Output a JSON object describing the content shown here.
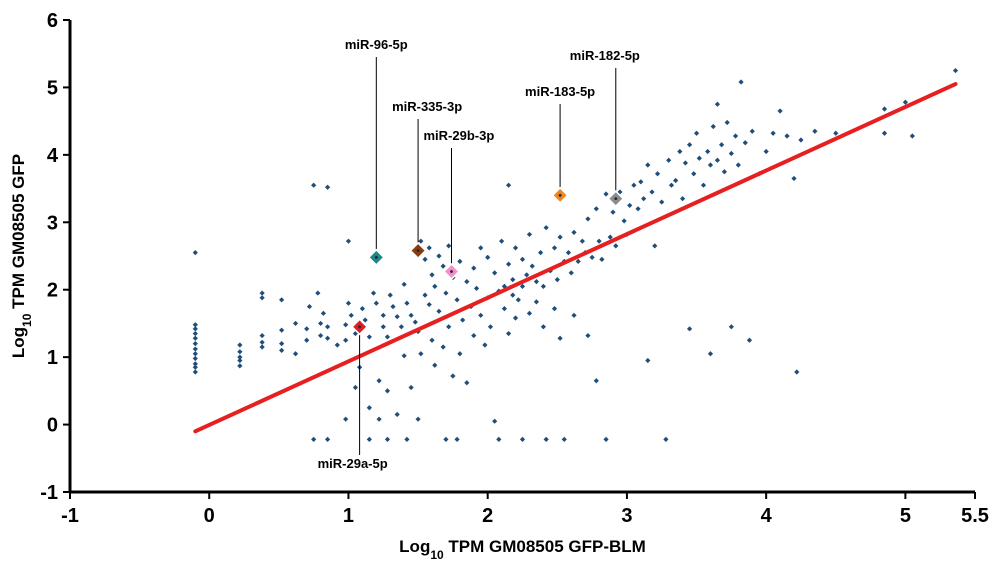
{
  "chart_data": {
    "type": "scatter",
    "title": "",
    "xlabel": {
      "prefix": "Log",
      "sub": "10",
      "rest": " TPM GM08505 GFP-BLM"
    },
    "ylabel": {
      "prefix": "Log",
      "sub": "10",
      "rest": " TPM GM08505 GFP"
    },
    "xlim": [
      -1,
      5.5
    ],
    "ylim": [
      -1,
      6
    ],
    "x_ticks": [
      "-1",
      "0",
      "1",
      "2",
      "3",
      "4",
      "5",
      "5.5"
    ],
    "y_ticks": [
      "-1",
      "0",
      "1",
      "2",
      "3",
      "4",
      "5",
      "6"
    ],
    "grid": false,
    "colors": {
      "points": "#1f4e79",
      "fit_line": "#e62020"
    },
    "fit_line": {
      "x": [
        -0.1,
        5.36
      ],
      "y": [
        -0.1,
        5.05
      ]
    },
    "points": [
      [
        -0.1,
        2.55
      ],
      [
        -0.1,
        1.48
      ],
      [
        -0.1,
        1.42
      ],
      [
        -0.1,
        1.35
      ],
      [
        -0.1,
        1.28
      ],
      [
        -0.1,
        1.2
      ],
      [
        -0.1,
        1.12
      ],
      [
        -0.1,
        1.05
      ],
      [
        -0.1,
        0.98
      ],
      [
        -0.1,
        0.9
      ],
      [
        -0.1,
        0.85
      ],
      [
        -0.1,
        0.78
      ],
      [
        0.22,
        1.18
      ],
      [
        0.22,
        1.08
      ],
      [
        0.22,
        1.0
      ],
      [
        0.22,
        0.95
      ],
      [
        0.22,
        0.87
      ],
      [
        0.38,
        1.95
      ],
      [
        0.38,
        1.88
      ],
      [
        0.38,
        1.32
      ],
      [
        0.38,
        1.22
      ],
      [
        0.38,
        1.15
      ],
      [
        0.52,
        1.85
      ],
      [
        0.52,
        1.4
      ],
      [
        0.52,
        1.2
      ],
      [
        0.52,
        1.1
      ],
      [
        0.62,
        1.5
      ],
      [
        0.62,
        1.05
      ],
      [
        0.7,
        1.42
      ],
      [
        0.7,
        1.25
      ],
      [
        0.72,
        1.75
      ],
      [
        0.75,
        3.55
      ],
      [
        0.75,
        -0.22
      ],
      [
        0.78,
        1.95
      ],
      [
        0.8,
        1.5
      ],
      [
        0.8,
        1.32
      ],
      [
        0.82,
        1.65
      ],
      [
        0.85,
        3.52
      ],
      [
        0.85,
        1.45
      ],
      [
        0.85,
        1.28
      ],
      [
        0.85,
        -0.22
      ],
      [
        0.92,
        1.18
      ],
      [
        0.98,
        1.48
      ],
      [
        0.98,
        1.25
      ],
      [
        0.98,
        0.08
      ],
      [
        1.0,
        2.72
      ],
      [
        1.0,
        1.8
      ],
      [
        1.02,
        1.62
      ],
      [
        1.05,
        1.35
      ],
      [
        1.05,
        0.55
      ],
      [
        1.08,
        0.85
      ],
      [
        1.1,
        1.72
      ],
      [
        1.12,
        1.55
      ],
      [
        1.15,
        1.3
      ],
      [
        1.15,
        0.25
      ],
      [
        1.15,
        -0.22
      ],
      [
        1.18,
        1.95
      ],
      [
        1.2,
        1.8
      ],
      [
        1.22,
        0.65
      ],
      [
        1.22,
        0.08
      ],
      [
        1.25,
        1.62
      ],
      [
        1.25,
        1.45
      ],
      [
        1.28,
        1.3
      ],
      [
        1.28,
        0.5
      ],
      [
        1.28,
        -0.22
      ],
      [
        1.3,
        1.92
      ],
      [
        1.32,
        1.75
      ],
      [
        1.35,
        1.6
      ],
      [
        1.35,
        0.15
      ],
      [
        1.38,
        1.45
      ],
      [
        1.4,
        2.08
      ],
      [
        1.4,
        1.02
      ],
      [
        1.42,
        1.8
      ],
      [
        1.42,
        -0.22
      ],
      [
        1.45,
        1.62
      ],
      [
        1.45,
        0.55
      ],
      [
        1.48,
        1.52
      ],
      [
        1.5,
        1.38
      ],
      [
        1.5,
        0.08
      ],
      [
        1.52,
        2.72
      ],
      [
        1.52,
        1.05
      ],
      [
        1.55,
        2.45
      ],
      [
        1.55,
        1.92
      ],
      [
        1.58,
        2.62
      ],
      [
        1.58,
        1.78
      ],
      [
        1.6,
        2.22
      ],
      [
        1.6,
        1.25
      ],
      [
        1.62,
        2.05
      ],
      [
        1.62,
        0.88
      ],
      [
        1.65,
        2.5
      ],
      [
        1.65,
        1.68
      ],
      [
        1.68,
        2.35
      ],
      [
        1.68,
        1.15
      ],
      [
        1.7,
        1.95
      ],
      [
        1.7,
        -0.22
      ],
      [
        1.72,
        2.65
      ],
      [
        1.72,
        1.45
      ],
      [
        1.75,
        2.18
      ],
      [
        1.75,
        0.72
      ],
      [
        1.78,
        1.85
      ],
      [
        1.78,
        -0.22
      ],
      [
        1.8,
        2.42
      ],
      [
        1.8,
        1.05
      ],
      [
        1.82,
        1.55
      ],
      [
        1.85,
        2.12
      ],
      [
        1.85,
        0.62
      ],
      [
        1.88,
        1.75
      ],
      [
        1.9,
        2.32
      ],
      [
        1.9,
        1.32
      ],
      [
        1.92,
        2.02
      ],
      [
        1.95,
        2.62
      ],
      [
        1.95,
        1.62
      ],
      [
        1.98,
        1.18
      ],
      [
        2.0,
        2.48
      ],
      [
        2.0,
        1.88
      ],
      [
        2.02,
        1.45
      ],
      [
        2.05,
        2.25
      ],
      [
        2.05,
        0.05
      ],
      [
        2.08,
        1.98
      ],
      [
        2.08,
        -0.22
      ],
      [
        2.1,
        2.72
      ],
      [
        2.12,
        2.05
      ],
      [
        2.12,
        1.72
      ],
      [
        2.15,
        3.55
      ],
      [
        2.15,
        2.38
      ],
      [
        2.15,
        1.35
      ],
      [
        2.18,
        2.15
      ],
      [
        2.18,
        1.92
      ],
      [
        2.2,
        2.62
      ],
      [
        2.2,
        1.58
      ],
      [
        2.22,
        1.85
      ],
      [
        2.25,
        2.45
      ],
      [
        2.25,
        2.05
      ],
      [
        2.25,
        -0.22
      ],
      [
        2.28,
        2.22
      ],
      [
        2.3,
        2.82
      ],
      [
        2.3,
        1.65
      ],
      [
        2.32,
        2.35
      ],
      [
        2.35,
        2.12
      ],
      [
        2.35,
        1.82
      ],
      [
        2.38,
        2.55
      ],
      [
        2.4,
        2.05
      ],
      [
        2.4,
        1.45
      ],
      [
        2.42,
        2.92
      ],
      [
        2.42,
        -0.22
      ],
      [
        2.45,
        2.28
      ],
      [
        2.48,
        2.62
      ],
      [
        2.48,
        1.72
      ],
      [
        2.5,
        2.15
      ],
      [
        2.52,
        2.78
      ],
      [
        2.52,
        1.28
      ],
      [
        2.55,
        2.42
      ],
      [
        2.55,
        -0.22
      ],
      [
        2.58,
        2.55
      ],
      [
        2.6,
        2.25
      ],
      [
        2.62,
        2.85
      ],
      [
        2.62,
        1.62
      ],
      [
        2.65,
        2.42
      ],
      [
        2.68,
        2.72
      ],
      [
        2.7,
        2.55
      ],
      [
        2.72,
        3.05
      ],
      [
        2.72,
        1.32
      ],
      [
        2.75,
        2.48
      ],
      [
        2.78,
        3.2
      ],
      [
        2.78,
        0.65
      ],
      [
        2.8,
        2.72
      ],
      [
        2.82,
        2.45
      ],
      [
        2.85,
        3.42
      ],
      [
        2.85,
        -0.22
      ],
      [
        2.88,
        2.78
      ],
      [
        2.9,
        3.15
      ],
      [
        2.92,
        2.65
      ],
      [
        2.95,
        3.45
      ],
      [
        2.98,
        3.02
      ],
      [
        3.0,
        2.82
      ],
      [
        3.02,
        3.25
      ],
      [
        3.05,
        3.55
      ],
      [
        3.08,
        3.2
      ],
      [
        3.1,
        3.6
      ],
      [
        3.12,
        3.35
      ],
      [
        3.15,
        3.85
      ],
      [
        3.15,
        0.95
      ],
      [
        3.18,
        3.45
      ],
      [
        3.2,
        2.65
      ],
      [
        3.22,
        3.72
      ],
      [
        3.25,
        3.3
      ],
      [
        3.28,
        -0.22
      ],
      [
        3.3,
        3.92
      ],
      [
        3.32,
        3.55
      ],
      [
        3.35,
        3.62
      ],
      [
        3.38,
        4.05
      ],
      [
        3.4,
        3.35
      ],
      [
        3.42,
        3.88
      ],
      [
        3.45,
        4.15
      ],
      [
        3.45,
        1.42
      ],
      [
        3.48,
        3.72
      ],
      [
        3.5,
        4.32
      ],
      [
        3.52,
        3.95
      ],
      [
        3.55,
        3.55
      ],
      [
        3.58,
        4.05
      ],
      [
        3.6,
        3.85
      ],
      [
        3.6,
        1.05
      ],
      [
        3.62,
        4.42
      ],
      [
        3.65,
        4.75
      ],
      [
        3.65,
        3.92
      ],
      [
        3.68,
        4.15
      ],
      [
        3.7,
        3.75
      ],
      [
        3.72,
        4.48
      ],
      [
        3.75,
        4.02
      ],
      [
        3.75,
        1.45
      ],
      [
        3.78,
        4.28
      ],
      [
        3.8,
        3.85
      ],
      [
        3.82,
        5.08
      ],
      [
        3.85,
        4.18
      ],
      [
        3.88,
        1.25
      ],
      [
        3.9,
        4.35
      ],
      [
        3.95,
        3.72
      ],
      [
        4.0,
        4.05
      ],
      [
        4.05,
        4.32
      ],
      [
        4.1,
        4.65
      ],
      [
        4.15,
        4.28
      ],
      [
        4.2,
        3.65
      ],
      [
        4.22,
        0.78
      ],
      [
        4.25,
        4.22
      ],
      [
        4.35,
        4.35
      ],
      [
        4.5,
        4.32
      ],
      [
        4.85,
        4.68
      ],
      [
        4.85,
        4.32
      ],
      [
        5.0,
        4.78
      ],
      [
        5.05,
        4.28
      ],
      [
        5.36,
        5.25
      ]
    ],
    "highlighted": [
      {
        "label": "miR-96-5p",
        "x": 1.2,
        "y": 2.48,
        "color": "#1a8a86"
      },
      {
        "label": "miR-335-3p",
        "x": 1.5,
        "y": 2.58,
        "color": "#8b3b10"
      },
      {
        "label": "miR-29b-3p",
        "x": 1.74,
        "y": 2.27,
        "color": "#f28fc8"
      },
      {
        "label": "miR-183-5p",
        "x": 2.52,
        "y": 3.4,
        "color": "#f58220"
      },
      {
        "label": "miR-182-5p",
        "x": 2.92,
        "y": 3.35,
        "color": "#8c8c8c"
      },
      {
        "label": "miR-29a-5p",
        "x": 1.08,
        "y": 1.45,
        "color": "#e01e24"
      }
    ]
  }
}
